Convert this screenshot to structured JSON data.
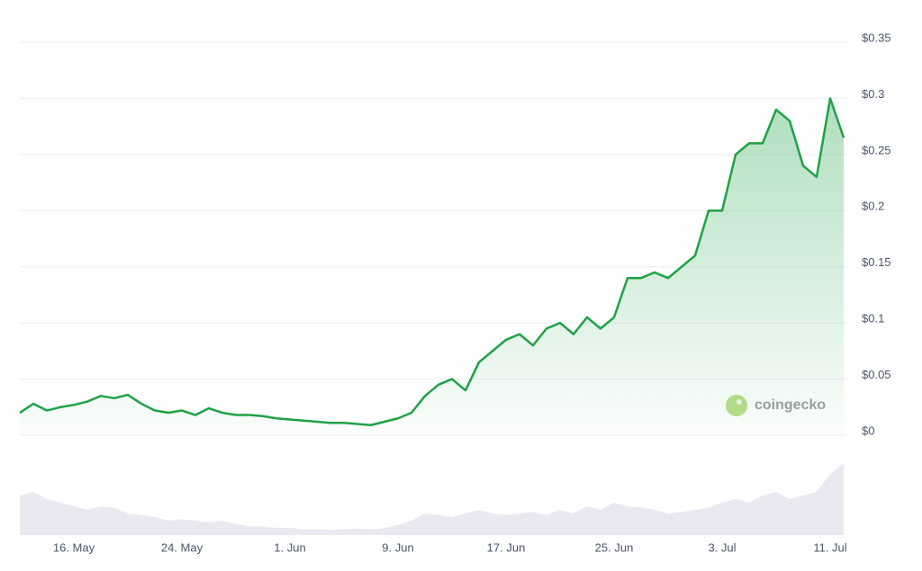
{
  "chart_data": {
    "type": "line",
    "categories": [
      null,
      null,
      null,
      null,
      "16. May",
      null,
      null,
      null,
      null,
      null,
      null,
      null,
      "24. May",
      null,
      null,
      null,
      null,
      null,
      null,
      null,
      "1. Jun",
      null,
      null,
      null,
      null,
      null,
      null,
      null,
      "9. Jun",
      null,
      null,
      null,
      null,
      null,
      null,
      null,
      "17. Jun",
      null,
      null,
      null,
      null,
      null,
      null,
      null,
      "25. Jun",
      null,
      null,
      null,
      null,
      null,
      null,
      null,
      "3. Jul",
      null,
      null,
      null,
      null,
      null,
      null,
      null,
      "11. Jul",
      null
    ],
    "series": [
      {
        "color": "#1fa246",
        "values": [
          0.02,
          0.028,
          0.022,
          0.025,
          0.027,
          0.03,
          0.035,
          0.033,
          0.036,
          0.028,
          0.022,
          0.02,
          0.022,
          0.018,
          0.024,
          0.02,
          0.018,
          0.018,
          0.017,
          0.015,
          0.014,
          0.013,
          0.012,
          0.011,
          0.011,
          0.01,
          0.009,
          0.012,
          0.015,
          0.02,
          0.035,
          0.045,
          0.05,
          0.04,
          0.065,
          0.075,
          0.085,
          0.09,
          0.08,
          0.095,
          0.1,
          0.09,
          0.105,
          0.095,
          0.105,
          0.14,
          0.14,
          0.145,
          0.14,
          0.15,
          0.16,
          0.2,
          0.2,
          0.25,
          0.26,
          0.26,
          0.29,
          0.28,
          0.24,
          0.23,
          0.3,
          0.265
        ]
      }
    ],
    "volume": {
      "color": "#e9eaf1",
      "ylim": [
        0,
        100
      ],
      "values": [
        55,
        60,
        50,
        45,
        40,
        35,
        40,
        38,
        30,
        28,
        25,
        20,
        22,
        20,
        18,
        20,
        15,
        12,
        12,
        10,
        10,
        8,
        8,
        7,
        8,
        9,
        8,
        10,
        14,
        20,
        30,
        28,
        25,
        30,
        35,
        30,
        28,
        30,
        32,
        28,
        35,
        30,
        40,
        35,
        45,
        40,
        38,
        35,
        30,
        32,
        35,
        38,
        45,
        50,
        45,
        55,
        60,
        50,
        55,
        60,
        85,
        100
      ]
    },
    "ylim": [
      0,
      0.35
    ],
    "yticks": [
      {
        "value": 0,
        "label": "$0"
      },
      {
        "value": 0.05,
        "label": "$0.05"
      },
      {
        "value": 0.1,
        "label": "$0.1"
      },
      {
        "value": 0.15,
        "label": "$0.15"
      },
      {
        "value": 0.2,
        "label": "$0.2"
      },
      {
        "value": 0.25,
        "label": "$0.25"
      },
      {
        "value": 0.3,
        "label": "$0.3"
      },
      {
        "value": 0.35,
        "label": "$0.35"
      }
    ],
    "grid": true,
    "watermark": "coingecko"
  }
}
